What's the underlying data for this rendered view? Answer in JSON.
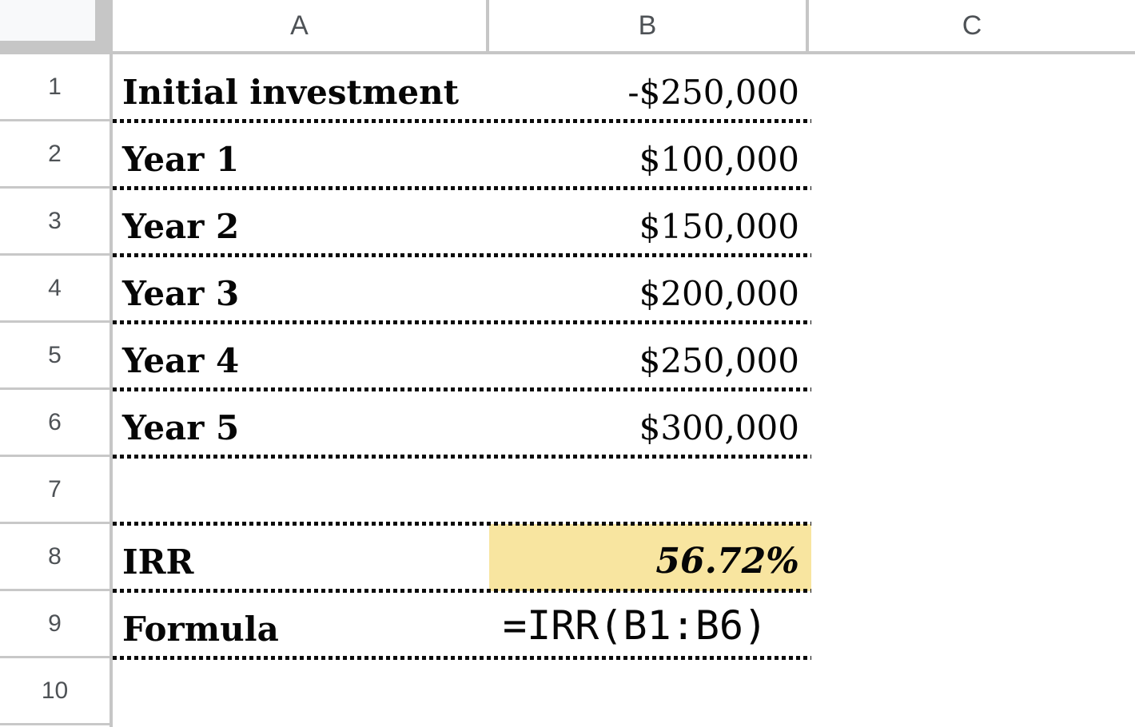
{
  "app": {
    "name": "spreadsheet-irr-example"
  },
  "columns": [
    "A",
    "B",
    "C"
  ],
  "row_numbers": [
    "1",
    "2",
    "3",
    "4",
    "5",
    "6",
    "7",
    "8",
    "9",
    "10"
  ],
  "rows": [
    {
      "label": "Initial investment",
      "value": "-$250,000"
    },
    {
      "label": "Year 1",
      "value": "$100,000"
    },
    {
      "label": "Year 2",
      "value": "$150,000"
    },
    {
      "label": "Year 3",
      "value": "$200,000"
    },
    {
      "label": "Year 4",
      "value": "$250,000"
    },
    {
      "label": "Year 5",
      "value": "$300,000"
    },
    {
      "label": "",
      "value": ""
    },
    {
      "label": "IRR",
      "value": "56.72%"
    },
    {
      "label": "Formula",
      "value": "=IRR(B1:B6)"
    },
    {
      "label": "",
      "value": ""
    }
  ],
  "highlight_cell": "B8",
  "formula_cell": "B9",
  "colors": {
    "highlight": "#f8e5a0",
    "grid_gray": "#c6c6c6",
    "row_line_gray": "#c8c8c8",
    "header_text": "#4e5256",
    "dotted_border": "#0b0b0b",
    "corner_light": "#f8f9fa"
  }
}
